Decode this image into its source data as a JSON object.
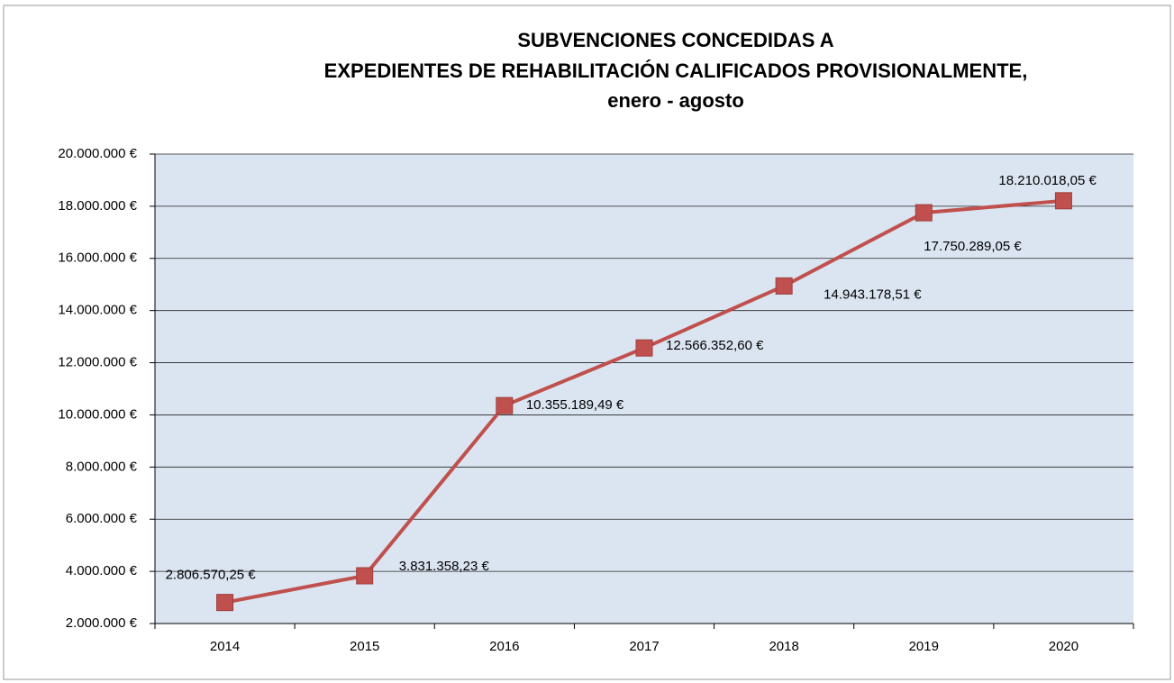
{
  "chart_data": {
    "type": "line",
    "title": [
      "SUBVENCIONES CONCEDIDAS A",
      "EXPEDIENTES DE REHABILITACIÓN CALIFICADOS PROVISIONALMENTE,"
    ],
    "subtitle": "enero - agosto",
    "categories": [
      "2014",
      "2015",
      "2016",
      "2017",
      "2018",
      "2019",
      "2020"
    ],
    "series": [
      {
        "color": "#c0504d",
        "values": [
          2806570.25,
          3831358.23,
          10355189.49,
          12566352.6,
          14943178.51,
          17750289.05,
          18210018.05
        ],
        "value_labels": [
          "2.806.570,25 €",
          "3.831.358,23 €",
          "10.355.189,49 €",
          "12.566.352,60 €",
          "14.943.178,51 €",
          "17.750.289,05 €",
          "18.210.018,05 €"
        ]
      }
    ],
    "ylim": [
      2000000,
      20000000
    ],
    "yticks": [
      {
        "value": 2000000,
        "label": "2.000.000 €"
      },
      {
        "value": 4000000,
        "label": "4.000.000 €"
      },
      {
        "value": 6000000,
        "label": "6.000.000 €"
      },
      {
        "value": 8000000,
        "label": "8.000.000 €"
      },
      {
        "value": 10000000,
        "label": "10.000.000 €"
      },
      {
        "value": 12000000,
        "label": "12.000.000 €"
      },
      {
        "value": 14000000,
        "label": "14.000.000 €"
      },
      {
        "value": 16000000,
        "label": "16.000.000 €"
      },
      {
        "value": 18000000,
        "label": "18.000.000 €"
      },
      {
        "value": 20000000,
        "label": "20.000.000 €"
      }
    ],
    "grid": true,
    "plot_background": "#dbe5f1"
  }
}
